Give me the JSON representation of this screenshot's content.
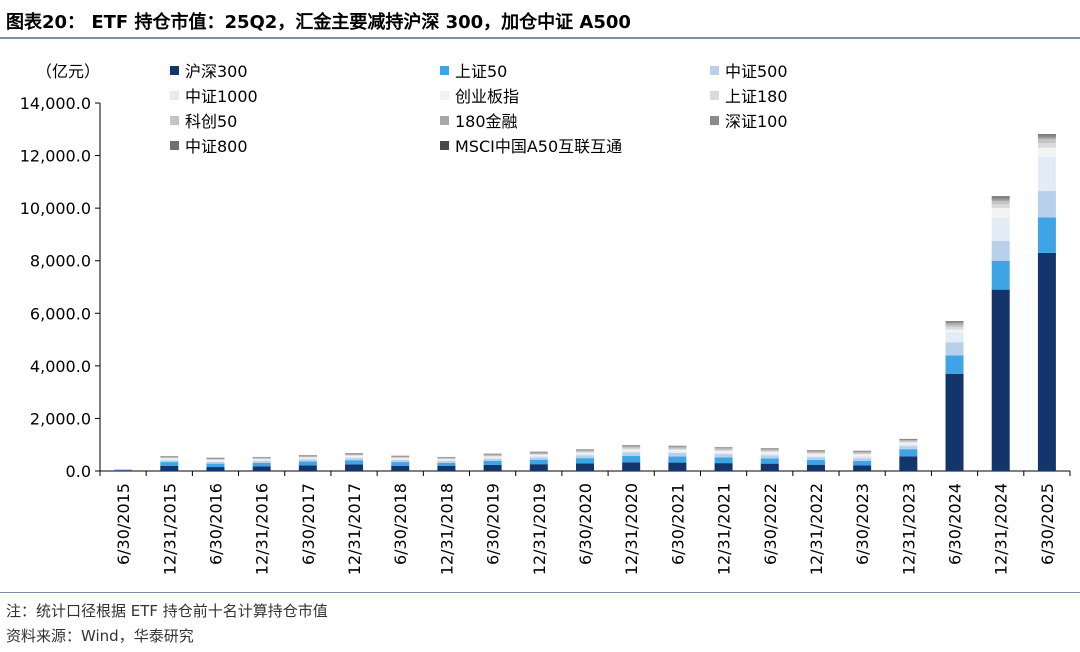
{
  "title": "图表20： ETF 持仓市值：25Q2，汇金主要减持沪深 300，加仓中证 A500",
  "unit_label": "（亿元）",
  "footnote_1": "注：统计口径根据 ETF 持仓前十名计算持仓市值",
  "footnote_2": "资料来源：Wind，华泰研究",
  "chart_data": {
    "type": "bar",
    "stacked": true,
    "categories": [
      "6/30/2015",
      "12/31/2015",
      "6/30/2016",
      "12/31/2016",
      "6/30/2017",
      "12/31/2017",
      "6/30/2018",
      "12/31/2018",
      "6/30/2019",
      "12/31/2019",
      "6/30/2020",
      "12/31/2020",
      "6/30/2021",
      "12/31/2021",
      "6/30/2022",
      "12/31/2022",
      "6/30/2023",
      "12/31/2023",
      "6/30/2024",
      "12/31/2024",
      "6/30/2025"
    ],
    "ylim": [
      0,
      14000
    ],
    "yticks": [
      "0.0",
      "2,000.0",
      "4,000.0",
      "6,000.0",
      "8,000.0",
      "10,000.0",
      "12,000.0",
      "14,000.0"
    ],
    "legend_position": "top",
    "series": [
      {
        "name": "沪深300",
        "color": "#14356b",
        "values": [
          30,
          200,
          150,
          180,
          210,
          250,
          200,
          190,
          230,
          260,
          290,
          330,
          320,
          300,
          280,
          240,
          220,
          560,
          3700,
          6900,
          8300
        ]
      },
      {
        "name": "上证50",
        "color": "#3ea4e6",
        "values": [
          15,
          140,
          130,
          130,
          150,
          160,
          140,
          120,
          160,
          170,
          200,
          240,
          230,
          220,
          200,
          180,
          160,
          270,
          700,
          1100,
          1350
        ]
      },
      {
        "name": "中证500",
        "color": "#b8d0ea",
        "values": [
          10,
          70,
          70,
          70,
          80,
          80,
          80,
          70,
          80,
          90,
          110,
          140,
          140,
          130,
          120,
          110,
          110,
          120,
          500,
          750,
          1000
        ]
      },
      {
        "name": "中证1000",
        "color": "#e2ecf7",
        "values": [
          0,
          40,
          40,
          40,
          40,
          50,
          40,
          40,
          40,
          50,
          50,
          60,
          60,
          60,
          70,
          70,
          90,
          90,
          380,
          900,
          1300
        ]
      },
      {
        "name": "创业板指",
        "color": "#f3f3f3",
        "values": [
          0,
          30,
          30,
          30,
          30,
          40,
          30,
          30,
          40,
          40,
          40,
          50,
          50,
          50,
          50,
          50,
          50,
          40,
          100,
          350,
          350
        ]
      },
      {
        "name": "上证180",
        "color": "#dadada",
        "values": [
          5,
          30,
          25,
          25,
          30,
          30,
          30,
          25,
          30,
          35,
          35,
          40,
          40,
          35,
          35,
          30,
          30,
          30,
          100,
          150,
          170
        ]
      },
      {
        "name": "科创50",
        "color": "#c4c4c4",
        "values": [
          0,
          0,
          0,
          0,
          0,
          0,
          0,
          0,
          10,
          20,
          30,
          50,
          50,
          50,
          40,
          40,
          40,
          40,
          80,
          120,
          150
        ]
      },
      {
        "name": "180金融",
        "color": "#a8a8a8",
        "values": [
          5,
          30,
          30,
          30,
          40,
          40,
          30,
          30,
          40,
          40,
          40,
          40,
          40,
          40,
          40,
          40,
          40,
          30,
          60,
          60,
          70
        ]
      },
      {
        "name": "深证100",
        "color": "#8a8a8a",
        "values": [
          5,
          20,
          20,
          20,
          20,
          20,
          20,
          20,
          20,
          20,
          20,
          20,
          20,
          20,
          20,
          20,
          20,
          20,
          40,
          60,
          60
        ]
      },
      {
        "name": "中证800",
        "color": "#707070",
        "values": [
          0,
          10,
          10,
          10,
          10,
          10,
          10,
          10,
          10,
          10,
          10,
          10,
          10,
          10,
          10,
          10,
          10,
          10,
          20,
          30,
          30
        ]
      },
      {
        "name": "MSCI中国A50互联互通",
        "color": "#4a4a4a",
        "values": [
          0,
          0,
          0,
          0,
          0,
          0,
          0,
          0,
          0,
          0,
          0,
          0,
          0,
          0,
          0,
          0,
          0,
          10,
          20,
          30,
          30
        ]
      }
    ]
  }
}
